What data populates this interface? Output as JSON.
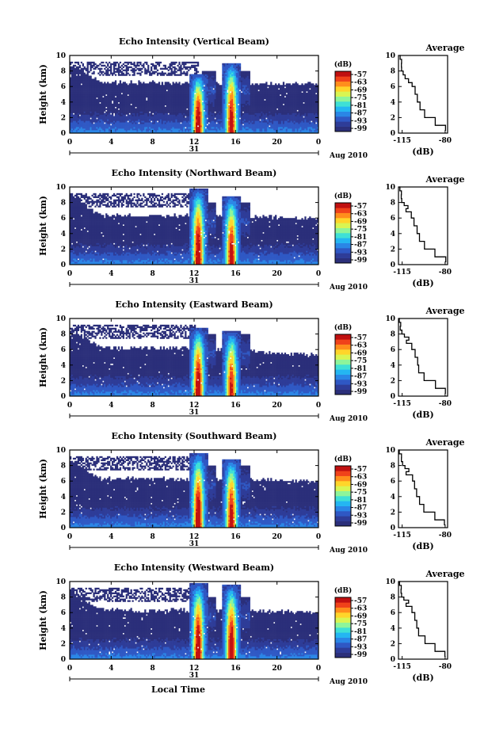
{
  "figure": {
    "xlabel": "Local Time"
  },
  "colors": {
    "plot_background": "#ffffff",
    "colormap": [
      "#2b2f7a",
      "#2e3c98",
      "#2f58c4",
      "#2a86e6",
      "#24b6f2",
      "#3fe0d6",
      "#8ef59a",
      "#d9f552",
      "#ffd52a",
      "#ff8e1c",
      "#f0421a",
      "#c01010"
    ]
  },
  "chart_data": [
    {
      "type": "heatmap",
      "title": "Echo Intensity (Vertical Beam)",
      "ylabel": "Height (km)",
      "ylim": [
        0,
        10
      ],
      "yticks": [
        "0",
        "2",
        "4",
        "6",
        "8",
        "10"
      ],
      "xlim": [
        0,
        24
      ],
      "xticks": [
        "0",
        "4",
        "8",
        "12",
        "16",
        "20",
        "0"
      ],
      "date_center": "31",
      "date_label": "Aug 2010",
      "colorbar": {
        "unit": "(dB)",
        "ticks": [
          "-57",
          "-63",
          "-69",
          "-75",
          "-81",
          "-87",
          "-93",
          "-99"
        ]
      },
      "features": {
        "echo_top_km": [
          9.0,
          6.5,
          6.3
        ],
        "convective_cores": [
          {
            "time_h": 12.4,
            "top_km": 7.7,
            "strength": 1.0
          },
          {
            "time_h": 15.6,
            "top_km": 9.1,
            "strength": 0.95
          }
        ]
      },
      "average": {
        "title": "Average",
        "xlabel": "(dB)",
        "xticks": [
          "-115",
          "-80"
        ],
        "xlim": [
          -118,
          -78
        ],
        "ylim": [
          0,
          10
        ],
        "height_km": [
          0.3,
          1,
          2,
          3,
          4,
          5,
          6,
          6.5,
          7,
          7.5,
          8,
          8.5,
          9,
          9.5,
          10
        ],
        "values_db": [
          -80,
          -88,
          -97,
          -101,
          -103,
          -105,
          -107,
          -110,
          -112,
          -114,
          -115,
          -116,
          -116,
          -117,
          -117
        ]
      }
    },
    {
      "type": "heatmap",
      "title": "Echo Intensity (Northward Beam)",
      "ylabel": "Height (km)",
      "ylim": [
        0,
        10
      ],
      "yticks": [
        "0",
        "2",
        "4",
        "6",
        "8",
        "10"
      ],
      "xlim": [
        0,
        24
      ],
      "xticks": [
        "0",
        "4",
        "8",
        "12",
        "16",
        "20",
        "0"
      ],
      "date_center": "31",
      "date_label": "Aug 2010",
      "colorbar": {
        "unit": "(dB)",
        "ticks": [
          "-57",
          "-63",
          "-69",
          "-75",
          "-81",
          "-87",
          "-93",
          "-99"
        ]
      },
      "features": {
        "echo_top_km": [
          8.8,
          6.3,
          6.0
        ],
        "convective_cores": [
          {
            "time_h": 12.4,
            "top_km": 9.8,
            "strength": 1.0
          },
          {
            "time_h": 15.6,
            "top_km": 8.9,
            "strength": 0.95
          }
        ]
      },
      "average": {
        "title": "Average",
        "xlabel": "(dB)",
        "xticks": [
          "-115",
          "-80"
        ],
        "xlim": [
          -118,
          -78
        ],
        "ylim": [
          0,
          10
        ],
        "height_km": [
          0.3,
          1,
          2,
          3,
          4,
          5,
          6,
          6.8,
          7.2,
          7.6,
          8,
          8.5,
          9,
          9.5,
          10
        ],
        "values_db": [
          -80,
          -88,
          -97,
          -101,
          -103,
          -105,
          -107,
          -112,
          -110,
          -113,
          -115,
          -116,
          -116,
          -117,
          -117
        ]
      }
    },
    {
      "type": "heatmap",
      "title": "Echo Intensity (Eastward Beam)",
      "ylabel": "Height (km)",
      "ylim": [
        0,
        10
      ],
      "yticks": [
        "0",
        "2",
        "4",
        "6",
        "8",
        "10"
      ],
      "xlim": [
        0,
        24
      ],
      "xticks": [
        "0",
        "4",
        "8",
        "12",
        "16",
        "20",
        "0"
      ],
      "date_center": "31",
      "date_label": "Aug 2010",
      "colorbar": {
        "unit": "(dB)",
        "ticks": [
          "-57",
          "-63",
          "-69",
          "-75",
          "-81",
          "-87",
          "-93",
          "-99"
        ]
      },
      "features": {
        "echo_top_km": [
          8.6,
          6.2,
          5.2
        ],
        "convective_cores": [
          {
            "time_h": 12.4,
            "top_km": 8.8,
            "strength": 1.0
          },
          {
            "time_h": 15.6,
            "top_km": 8.3,
            "strength": 0.9
          }
        ]
      },
      "average": {
        "title": "Average",
        "xlabel": "(dB)",
        "xticks": [
          "-115",
          "-80"
        ],
        "xlim": [
          -118,
          -78
        ],
        "ylim": [
          0,
          10
        ],
        "height_km": [
          0.3,
          1,
          2,
          3,
          4,
          5,
          6,
          6.8,
          7.2,
          7.6,
          8,
          8.5,
          9,
          9.5,
          10
        ],
        "values_db": [
          -80,
          -88,
          -97,
          -101,
          -103,
          -105,
          -107,
          -112,
          -110,
          -113,
          -115,
          -116,
          -116,
          -117,
          -117
        ]
      }
    },
    {
      "type": "heatmap",
      "title": "Echo Intensity (Southward Beam)",
      "ylabel": "Height (km)",
      "ylim": [
        0,
        10
      ],
      "yticks": [
        "0",
        "2",
        "4",
        "6",
        "8",
        "10"
      ],
      "xlim": [
        0,
        24
      ],
      "xticks": [
        "0",
        "4",
        "8",
        "12",
        "16",
        "20",
        "0"
      ],
      "date_center": "31",
      "date_label": "Aug 2010",
      "colorbar": {
        "unit": "(dB)",
        "ticks": [
          "-57",
          "-63",
          "-69",
          "-75",
          "-81",
          "-87",
          "-93",
          "-99"
        ]
      },
      "features": {
        "echo_top_km": [
          8.8,
          6.3,
          6.0
        ],
        "convective_cores": [
          {
            "time_h": 12.4,
            "top_km": 9.7,
            "strength": 1.0
          },
          {
            "time_h": 15.6,
            "top_km": 8.9,
            "strength": 0.95
          }
        ]
      },
      "average": {
        "title": "Average",
        "xlabel": "(dB)",
        "xticks": [
          "-115",
          "-80"
        ],
        "xlim": [
          -118,
          -78
        ],
        "ylim": [
          0,
          10
        ],
        "height_km": [
          0.3,
          1,
          2,
          3,
          4,
          5,
          6,
          6.8,
          7.2,
          7.6,
          8,
          8.5,
          9,
          9.5,
          10
        ],
        "values_db": [
          -80,
          -88,
          -97,
          -101,
          -103,
          -105,
          -107,
          -112,
          -110,
          -113,
          -115,
          -116,
          -116,
          -117,
          -117
        ]
      }
    },
    {
      "type": "heatmap",
      "title": "Echo Intensity (Westward Beam)",
      "ylabel": "Height (km)",
      "ylim": [
        0,
        10
      ],
      "yticks": [
        "0",
        "2",
        "4",
        "6",
        "8",
        "10"
      ],
      "xlim": [
        0,
        24
      ],
      "xticks": [
        "0",
        "4",
        "8",
        "12",
        "16",
        "20",
        "0"
      ],
      "date_center": "31",
      "date_label": "Aug 2010",
      "colorbar": {
        "unit": "(dB)",
        "ticks": [
          "-57",
          "-63",
          "-69",
          "-75",
          "-81",
          "-87",
          "-93",
          "-99"
        ]
      },
      "features": {
        "echo_top_km": [
          8.8,
          6.3,
          6.0
        ],
        "convective_cores": [
          {
            "time_h": 12.4,
            "top_km": 9.9,
            "strength": 1.0
          },
          {
            "time_h": 15.6,
            "top_km": 9.6,
            "strength": 1.0
          }
        ]
      },
      "average": {
        "title": "Average",
        "xlabel": "(dB)",
        "xticks": [
          "-115",
          "-80"
        ],
        "xlim": [
          -118,
          -78
        ],
        "ylim": [
          0,
          10
        ],
        "height_km": [
          0.3,
          1,
          2,
          3,
          4,
          5,
          6,
          6.8,
          7.2,
          7.6,
          8,
          8.5,
          9,
          9.5,
          10
        ],
        "values_db": [
          -80,
          -88,
          -97,
          -101,
          -103,
          -105,
          -107,
          -112,
          -110,
          -113,
          -115,
          -116,
          -116,
          -117,
          -117
        ]
      }
    }
  ]
}
